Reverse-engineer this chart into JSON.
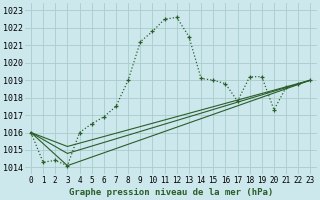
{
  "title": "Graphe pression niveau de la mer (hPa)",
  "background_color": "#cce8ec",
  "grid_color": "#aacccc",
  "line_color": "#2a5e2a",
  "xlim": [
    -0.5,
    23.5
  ],
  "ylim": [
    1013.6,
    1023.4
  ],
  "x_ticks": [
    0,
    1,
    2,
    3,
    4,
    5,
    6,
    7,
    8,
    9,
    10,
    11,
    12,
    13,
    14,
    15,
    16,
    17,
    18,
    19,
    20,
    21,
    22,
    23
  ],
  "yticks": [
    1014,
    1015,
    1016,
    1017,
    1018,
    1019,
    1020,
    1021,
    1022,
    1023
  ],
  "series_dotted": {
    "x": [
      0,
      1,
      2,
      3,
      4,
      5,
      6,
      7,
      8,
      9,
      10,
      11,
      12,
      13,
      14,
      15,
      16,
      17,
      18,
      19,
      20,
      21,
      22,
      23
    ],
    "y": [
      1016.0,
      1014.3,
      1014.4,
      1014.1,
      1016.0,
      1016.5,
      1016.9,
      1017.5,
      1019.0,
      1021.2,
      1021.8,
      1022.5,
      1022.6,
      1021.5,
      1019.1,
      1019.0,
      1018.8,
      1017.8,
      1019.2,
      1019.2,
      1017.3,
      1018.6,
      1018.8,
      1019.0
    ]
  },
  "series_solid": [
    {
      "x": [
        0,
        3,
        23
      ],
      "y": [
        1016.0,
        1014.1,
        1019.0
      ]
    },
    {
      "x": [
        0,
        3,
        23
      ],
      "y": [
        1016.0,
        1014.8,
        1019.0
      ]
    },
    {
      "x": [
        0,
        3,
        23
      ],
      "y": [
        1016.0,
        1015.2,
        1019.0
      ]
    }
  ],
  "ylabel_fontsize": 6,
  "xlabel_fontsize": 6.5,
  "tick_fontsize": 5.5
}
